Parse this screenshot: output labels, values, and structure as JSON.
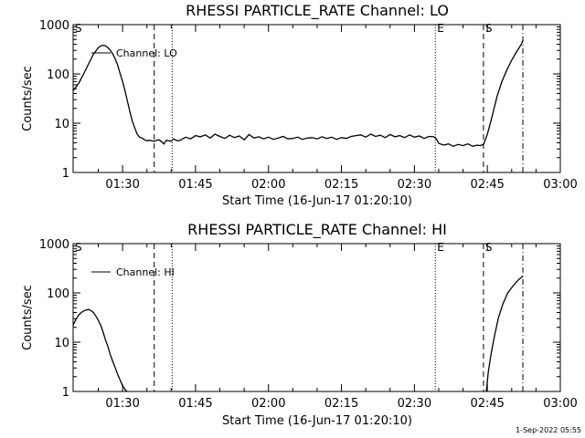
{
  "footer": {
    "date": "1-Sep-2022 05:55"
  },
  "colors": {
    "line": "#000000",
    "background": "#ffffff"
  },
  "chart_data": [
    {
      "type": "line",
      "title": "RHESSI PARTICLE_RATE Channel: LO",
      "xlabel": "Start Time (16-Jun-17 01:20:10)",
      "ylabel": "Counts/sec",
      "yscale": "log",
      "xlim_minutes": [
        -10.17,
        90
      ],
      "ylim": [
        1,
        1000
      ],
      "x_ticks": [
        {
          "label": "01:30",
          "min": 0
        },
        {
          "label": "01:45",
          "min": 15
        },
        {
          "label": "02:00",
          "min": 30
        },
        {
          "label": "02:15",
          "min": 45
        },
        {
          "label": "02:30",
          "min": 60
        },
        {
          "label": "02:45",
          "min": 75
        },
        {
          "label": "03:00",
          "min": 90
        }
      ],
      "y_ticks": [
        {
          "label": "1",
          "value": 1
        },
        {
          "label": "10",
          "value": 10
        },
        {
          "label": "100",
          "value": 100
        },
        {
          "label": "1000",
          "value": 1000
        }
      ],
      "legend": {
        "entry": "Channel: LO",
        "position": "top-left"
      },
      "markers": [
        {
          "label": "S",
          "min": -10.17,
          "style": "dotted"
        },
        {
          "label": "",
          "min": 6.5,
          "style": "dashed"
        },
        {
          "label": "",
          "min": 10.2,
          "style": "dotted"
        },
        {
          "label": "E",
          "min": 64.3,
          "style": "dotted"
        },
        {
          "label": "S",
          "min": 74.2,
          "style": "dashed"
        },
        {
          "label": "",
          "min": 82.3,
          "style": "dashdot"
        }
      ],
      "series": [
        {
          "x": [
            -10.2,
            -9.0,
            -8.0,
            -7.0,
            -6.0,
            -5.0,
            -4.5,
            -4.0,
            -3.5,
            -3.0,
            -2.5,
            -2.0,
            -1.5,
            -1.0,
            -0.5,
            0,
            0.5,
            1.0,
            1.5,
            2.0,
            2.5,
            3.0,
            3.5,
            4.0,
            4.5,
            5.0,
            5.5,
            6.0,
            6.5,
            7.0,
            7.5,
            8.0,
            8.5,
            9.0,
            9.5,
            10.0,
            10.5,
            11.0,
            11.5,
            12.0,
            13.0,
            14.0,
            15.0,
            16.0,
            17.0,
            18.0,
            19.0,
            20.0,
            21.0,
            22.0,
            23.0,
            24.0,
            25.0,
            26.0,
            27.0,
            28.0,
            29.0,
            30.0,
            31.0,
            32.0,
            33.0,
            34.0,
            35.0,
            36.0,
            37.0,
            38.0,
            39.0,
            40.0,
            41.0,
            42.0,
            43.0,
            44.0,
            45.0,
            46.0,
            47.0,
            48.0,
            49.0,
            50.0,
            51.0,
            52.0,
            53.0,
            54.0,
            55.0,
            56.0,
            57.0,
            58.0,
            59.0,
            60.0,
            61.0,
            62.0,
            63.0,
            64.0,
            64.5,
            65.0,
            66.0,
            67.0,
            68.0,
            69.0,
            70.0,
            71.0,
            72.0,
            73.0,
            73.5,
            74.2,
            75.0,
            76.0,
            77.0,
            78.0,
            79.0,
            80.0,
            81.0,
            82.0,
            82.3
          ],
          "y": [
            45,
            65,
            100,
            160,
            250,
            340,
            370,
            380,
            370,
            340,
            300,
            250,
            200,
            150,
            100,
            70,
            45,
            28,
            17,
            11,
            8,
            6,
            5.2,
            5,
            4.6,
            4.4,
            4.5,
            4.4,
            4.3,
            4.5,
            4.6,
            4.2,
            3.8,
            4.5,
            4.4,
            4.3,
            4.8,
            4.5,
            4.4,
            4.6,
            5.2,
            4.8,
            5.6,
            5.3,
            5.8,
            5.0,
            6.0,
            5.4,
            4.9,
            5.7,
            5.1,
            5.5,
            4.6,
            5.9,
            5.0,
            5.3,
            4.8,
            5.2,
            4.7,
            5.0,
            5.4,
            4.8,
            4.9,
            5.2,
            4.7,
            5.0,
            5.1,
            4.8,
            5.3,
            4.9,
            5.2,
            4.7,
            5.1,
            4.9,
            5.4,
            5.6,
            5.8,
            5.2,
            6.0,
            5.4,
            5.7,
            5.1,
            5.9,
            5.3,
            5.6,
            5.1,
            5.8,
            5.2,
            5.5,
            4.9,
            5.4,
            5.3,
            4.8,
            3.9,
            3.6,
            3.8,
            3.4,
            3.7,
            3.5,
            3.8,
            3.4,
            3.6,
            3.5,
            3.7,
            6.0,
            14,
            35,
            70,
            120,
            190,
            280,
            400,
            480
          ]
        }
      ]
    },
    {
      "type": "line",
      "title": "RHESSI PARTICLE_RATE Channel: HI",
      "xlabel": "Start Time (16-Jun-17 01:20:10)",
      "ylabel": "Counts/sec",
      "yscale": "log",
      "xlim_minutes": [
        -10.17,
        90
      ],
      "ylim": [
        1,
        1000
      ],
      "x_ticks": [
        {
          "label": "01:30",
          "min": 0
        },
        {
          "label": "01:45",
          "min": 15
        },
        {
          "label": "02:00",
          "min": 30
        },
        {
          "label": "02:15",
          "min": 45
        },
        {
          "label": "02:30",
          "min": 60
        },
        {
          "label": "02:45",
          "min": 75
        },
        {
          "label": "03:00",
          "min": 90
        }
      ],
      "y_ticks": [
        {
          "label": "1",
          "value": 1
        },
        {
          "label": "10",
          "value": 10
        },
        {
          "label": "100",
          "value": 100
        },
        {
          "label": "1000",
          "value": 1000
        }
      ],
      "legend": {
        "entry": "Channel: HI",
        "position": "top-left"
      },
      "markers": [
        {
          "label": "S",
          "min": -10.17,
          "style": "dotted"
        },
        {
          "label": "",
          "min": 6.5,
          "style": "dashed"
        },
        {
          "label": "",
          "min": 10.2,
          "style": "dotted"
        },
        {
          "label": "E",
          "min": 64.3,
          "style": "dotted"
        },
        {
          "label": "S",
          "min": 74.2,
          "style": "dashed"
        },
        {
          "label": "",
          "min": 82.3,
          "style": "dashdot"
        }
      ],
      "series": [
        {
          "x": [
            -10.2,
            -9.5,
            -9.0,
            -8.5,
            -8.0,
            -7.5,
            -7.0,
            -6.5,
            -6.0,
            -5.5,
            -5.0,
            -4.5,
            -4.0,
            -3.5,
            -3.0,
            -2.5,
            -2.0,
            -1.5,
            -1.0,
            -0.5,
            0,
            0.5,
            0.9,
            74.8,
            75.2,
            75.8,
            76.5,
            77.3,
            78.2,
            79.2,
            80.3,
            81.3,
            82.3
          ],
          "y": [
            22,
            30,
            36,
            40,
            43,
            45,
            46,
            44,
            40,
            34,
            28,
            22,
            16,
            11,
            8,
            5.5,
            4,
            3,
            2.2,
            1.7,
            1.3,
            1.1,
            1.0,
            1.0,
            2.5,
            6,
            14,
            32,
            60,
            100,
            140,
            180,
            220
          ]
        }
      ]
    }
  ]
}
